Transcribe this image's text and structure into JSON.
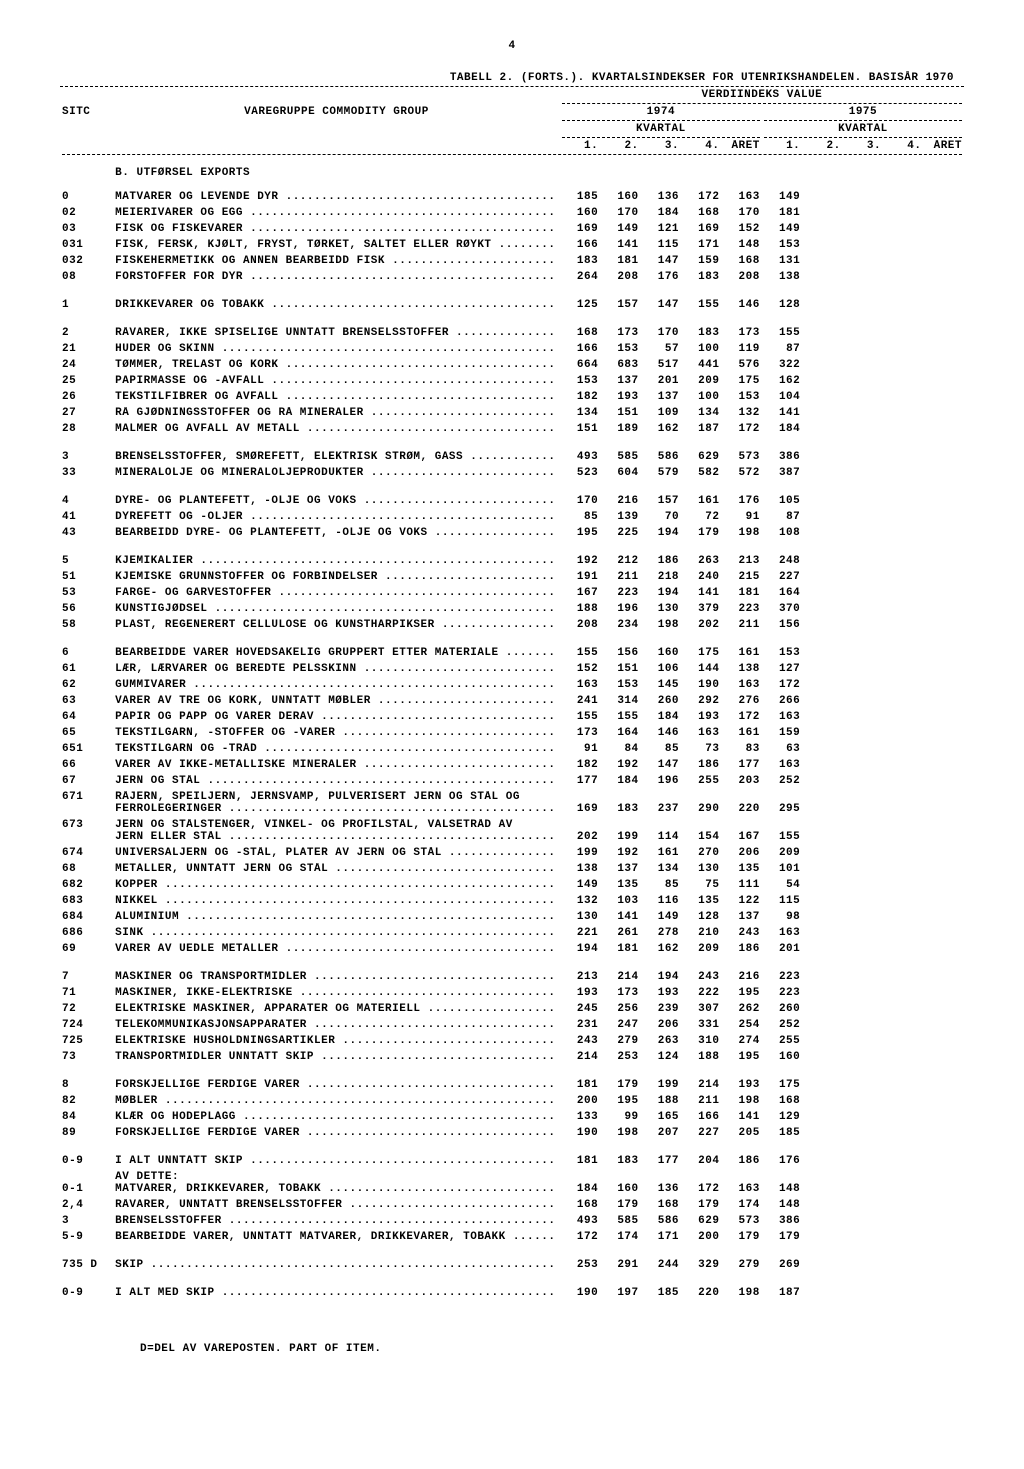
{
  "page_number": "4",
  "title": "TABELL 2. (FORTS.). KVARTALSINDEKSER FOR UTENRIKSHANDELEN. BASISÅR 1970",
  "header": {
    "value_label": "VERDIINDEKS  VALUE",
    "sitc": "SITC",
    "group": "VAREGRUPPE  COMMODITY GROUP",
    "y1974": "1974",
    "y1975": "1975",
    "kvartal": "KVARTAL",
    "cols_1974": [
      "1.",
      "2.",
      "3.",
      "4.",
      "ÅRET"
    ],
    "cols_1975": [
      "1.",
      "2.",
      "3.",
      "4.",
      "ÅRET"
    ]
  },
  "section_b": "B.   UTFØRSEL   EXPORTS",
  "rows": [
    {
      "sitc": "0",
      "desc": "MATVARER OG LEVENDE DYR",
      "v": [
        185,
        160,
        136,
        172,
        163,
        149
      ]
    },
    {
      "sitc": "02",
      "desc": "MEIERIVARER OG EGG",
      "v": [
        160,
        170,
        184,
        168,
        170,
        181
      ]
    },
    {
      "sitc": "03",
      "desc": "FISK OG FISKEVARER",
      "v": [
        169,
        149,
        121,
        169,
        152,
        149
      ]
    },
    {
      "sitc": "031",
      "desc": "  FISK, FERSK, KJØLT, FRYST, TØRKET, SALTET ELLER RØYKT",
      "v": [
        166,
        141,
        115,
        171,
        148,
        153
      ]
    },
    {
      "sitc": "032",
      "desc": "  FISKEHERMETIKK OG ANNEN BEARBEIDD FISK",
      "v": [
        183,
        181,
        147,
        159,
        168,
        131
      ]
    },
    {
      "sitc": "08",
      "desc": "FORSTOFFER FOR DYR",
      "v": [
        264,
        208,
        176,
        183,
        208,
        138
      ]
    },
    {
      "blank": true
    },
    {
      "sitc": "1",
      "desc": "DRIKKEVARER OG TOBAKK",
      "v": [
        125,
        157,
        147,
        155,
        146,
        128
      ]
    },
    {
      "blank": true
    },
    {
      "sitc": "2",
      "desc": "RÅVARER, IKKE SPISELIGE UNNTATT BRENSELSSTOFFER",
      "v": [
        168,
        173,
        170,
        183,
        173,
        155
      ]
    },
    {
      "sitc": "21",
      "desc": "HUDER OG SKINN",
      "v": [
        166,
        153,
        57,
        100,
        119,
        87
      ]
    },
    {
      "sitc": "24",
      "desc": "TØMMER, TRELAST OG KORK",
      "v": [
        664,
        683,
        517,
        441,
        576,
        322
      ]
    },
    {
      "sitc": "25",
      "desc": "PAPIRMASSE OG -AVFALL",
      "v": [
        153,
        137,
        201,
        209,
        175,
        162
      ]
    },
    {
      "sitc": "26",
      "desc": "TEKSTILFIBRER OG AVFALL",
      "v": [
        182,
        193,
        137,
        100,
        153,
        104
      ]
    },
    {
      "sitc": "27",
      "desc": "RÅ GJØDNINGSSTOFFER OG RÅ MINERALER",
      "v": [
        134,
        151,
        109,
        134,
        132,
        141
      ]
    },
    {
      "sitc": "28",
      "desc": "MALMER OG AVFALL AV METALL",
      "v": [
        151,
        189,
        162,
        187,
        172,
        184
      ]
    },
    {
      "blank": true
    },
    {
      "sitc": "3",
      "desc": "BRENSELSSTOFFER, SMØREFETT, ELEKTRISK STRØM, GASS",
      "v": [
        493,
        585,
        586,
        629,
        573,
        386
      ]
    },
    {
      "sitc": "33",
      "desc": "MINERALOLJE OG MINERALOLJEPRODUKTER",
      "v": [
        523,
        604,
        579,
        582,
        572,
        387
      ]
    },
    {
      "blank": true
    },
    {
      "sitc": "4",
      "desc": "DYRE- OG PLANTEFETT, -OLJE OG VOKS",
      "v": [
        170,
        216,
        157,
        161,
        176,
        105
      ]
    },
    {
      "sitc": "41",
      "desc": "DYREFETT OG -OLJER",
      "v": [
        85,
        139,
        70,
        72,
        91,
        87
      ]
    },
    {
      "sitc": "43",
      "desc": "BEARBEIDD DYRE- OG PLANTEFETT, -OLJE OG VOKS",
      "v": [
        195,
        225,
        194,
        179,
        198,
        108
      ]
    },
    {
      "blank": true
    },
    {
      "sitc": "5",
      "desc": "KJEMIKALIER",
      "v": [
        192,
        212,
        186,
        263,
        213,
        248
      ]
    },
    {
      "sitc": "51",
      "desc": "KJEMISKE GRUNNSTOFFER OG FORBINDELSER",
      "v": [
        191,
        211,
        218,
        240,
        215,
        227
      ]
    },
    {
      "sitc": "53",
      "desc": "FARGE- OG GARVESTOFFER",
      "v": [
        167,
        223,
        194,
        141,
        181,
        164
      ]
    },
    {
      "sitc": "56",
      "desc": "KUNSTIGJØDSEL",
      "v": [
        188,
        196,
        130,
        379,
        223,
        370
      ]
    },
    {
      "sitc": "58",
      "desc": "PLAST, REGENERERT CELLULOSE OG KUNSTHARPIKSER",
      "v": [
        208,
        234,
        198,
        202,
        211,
        156
      ]
    },
    {
      "blank": true
    },
    {
      "sitc": "6",
      "desc": "BEARBEIDDE VARER HOVEDSAKELIG GRUPPERT ETTER MATERIALE",
      "v": [
        155,
        156,
        160,
        175,
        161,
        153
      ]
    },
    {
      "sitc": "61",
      "desc": "LÆR, LÆRVARER OG BEREDTE PELSSKINN",
      "v": [
        152,
        151,
        106,
        144,
        138,
        127
      ]
    },
    {
      "sitc": "62",
      "desc": "GUMMIVARER",
      "v": [
        163,
        153,
        145,
        190,
        163,
        172
      ]
    },
    {
      "sitc": "63",
      "desc": "VARER AV TRE OG KORK, UNNTATT MØBLER",
      "v": [
        241,
        314,
        260,
        292,
        276,
        266
      ]
    },
    {
      "sitc": "64",
      "desc": "PAPIR OG PAPP OG VARER DERAV",
      "v": [
        155,
        155,
        184,
        193,
        172,
        163
      ]
    },
    {
      "sitc": "65",
      "desc": "TEKSTILGARN, -STOFFER OG -VARER",
      "v": [
        173,
        164,
        146,
        163,
        161,
        159
      ]
    },
    {
      "sitc": "651",
      "desc": "  TEKSTILGARN OG -TRÅD",
      "v": [
        91,
        84,
        85,
        73,
        83,
        63
      ]
    },
    {
      "sitc": "66",
      "desc": "VARER AV IKKE-METALLISKE MINERALER",
      "v": [
        182,
        192,
        147,
        186,
        177,
        163
      ]
    },
    {
      "sitc": "67",
      "desc": "JERN OG STÅL",
      "v": [
        177,
        184,
        196,
        255,
        203,
        252
      ]
    },
    {
      "sitc": "671",
      "desc": "  RÅJERN, SPEILJERN, JERNSVAMP, PULVERISERT JERN OG STÅL OG",
      "noval": true
    },
    {
      "sitc": "",
      "desc": "    FERROLEGERINGER",
      "v": [
        169,
        183,
        237,
        290,
        220,
        295
      ]
    },
    {
      "sitc": "673",
      "desc": "  JERN OG STÅLSTENGER, VINKEL- OG PROFILSTÅL, VALSETRÅD AV",
      "noval": true
    },
    {
      "sitc": "",
      "desc": "    JERN ELLER STÅL",
      "v": [
        202,
        199,
        114,
        154,
        167,
        155
      ]
    },
    {
      "sitc": "674",
      "desc": "  UNIVERSALJERN OG -STÅL, PLATER AV JERN OG STÅL",
      "v": [
        199,
        192,
        161,
        270,
        206,
        209
      ]
    },
    {
      "sitc": "68",
      "desc": "METALLER, UNNTATT JERN OG STÅL",
      "v": [
        138,
        137,
        134,
        130,
        135,
        101
      ]
    },
    {
      "sitc": "682",
      "desc": "  KOPPER",
      "v": [
        149,
        135,
        85,
        75,
        111,
        54
      ]
    },
    {
      "sitc": "683",
      "desc": "  NIKKEL",
      "v": [
        132,
        103,
        116,
        135,
        122,
        115
      ]
    },
    {
      "sitc": "684",
      "desc": "  ALUMINIUM",
      "v": [
        130,
        141,
        149,
        128,
        137,
        98
      ]
    },
    {
      "sitc": "686",
      "desc": "  SINK",
      "v": [
        221,
        261,
        278,
        210,
        243,
        163
      ]
    },
    {
      "sitc": "69",
      "desc": "VARER AV UEDLE METALLER",
      "v": [
        194,
        181,
        162,
        209,
        186,
        201
      ]
    },
    {
      "blank": true
    },
    {
      "sitc": "7",
      "desc": "MASKINER OG TRANSPORTMIDLER",
      "v": [
        213,
        214,
        194,
        243,
        216,
        223
      ]
    },
    {
      "sitc": "71",
      "desc": "MASKINER, IKKE-ELEKTRISKE",
      "v": [
        193,
        173,
        193,
        222,
        195,
        223
      ]
    },
    {
      "sitc": "72",
      "desc": "ELEKTRISKE MASKINER, APPARATER OG MATERIELL",
      "v": [
        245,
        256,
        239,
        307,
        262,
        260
      ]
    },
    {
      "sitc": "724",
      "desc": "  TELEKOMMUNIKASJONSAPPARATER",
      "v": [
        231,
        247,
        206,
        331,
        254,
        252
      ]
    },
    {
      "sitc": "725",
      "desc": "  ELEKTRISKE HUSHOLDNINGSARTIKLER",
      "v": [
        243,
        279,
        263,
        310,
        274,
        255
      ]
    },
    {
      "sitc": "73",
      "desc": "TRANSPORTMIDLER UNNTATT SKIP",
      "v": [
        214,
        253,
        124,
        188,
        195,
        160
      ]
    },
    {
      "blank": true
    },
    {
      "sitc": "8",
      "desc": "FORSKJELLIGE FERDIGE VARER",
      "v": [
        181,
        179,
        199,
        214,
        193,
        175
      ]
    },
    {
      "sitc": "82",
      "desc": "MØBLER",
      "v": [
        200,
        195,
        188,
        211,
        198,
        168
      ]
    },
    {
      "sitc": "84",
      "desc": "KLÆR OG HODEPLAGG",
      "v": [
        133,
        99,
        165,
        166,
        141,
        129
      ]
    },
    {
      "sitc": "89",
      "desc": "FORSKJELLIGE FERDIGE VARER",
      "v": [
        190,
        198,
        207,
        227,
        205,
        185
      ]
    },
    {
      "blank": true
    },
    {
      "sitc": "0-9",
      "desc": "I ALT UNNTATT SKIP",
      "v": [
        181,
        183,
        177,
        204,
        186,
        176
      ]
    },
    {
      "sitc": "",
      "desc": "AV DETTE:",
      "noval": true
    },
    {
      "sitc": "0-1",
      "desc": "  MATVARER, DRIKKEVARER, TOBAKK",
      "v": [
        184,
        160,
        136,
        172,
        163,
        148
      ]
    },
    {
      "sitc": "2,4",
      "desc": "  RÅVARER, UNNTATT BRENSELSSTOFFER",
      "v": [
        168,
        179,
        168,
        179,
        174,
        148
      ]
    },
    {
      "sitc": "3",
      "desc": "  BRENSELSSTOFFER",
      "v": [
        493,
        585,
        586,
        629,
        573,
        386
      ]
    },
    {
      "sitc": "5-9",
      "desc": "  BEARBEIDDE VARER, UNNTATT MATVARER, DRIKKEVARER, TOBAKK",
      "v": [
        172,
        174,
        171,
        200,
        179,
        179
      ]
    },
    {
      "blank": true
    },
    {
      "sitc": "735 D",
      "desc": "SKIP",
      "v": [
        253,
        291,
        244,
        329,
        279,
        269
      ]
    },
    {
      "blank": true
    },
    {
      "sitc": "0-9",
      "desc": "I ALT MED SKIP",
      "v": [
        190,
        197,
        185,
        220,
        198,
        187
      ]
    }
  ],
  "footnote": "D=DEL AV VAREPOSTEN.  PART OF ITEM."
}
